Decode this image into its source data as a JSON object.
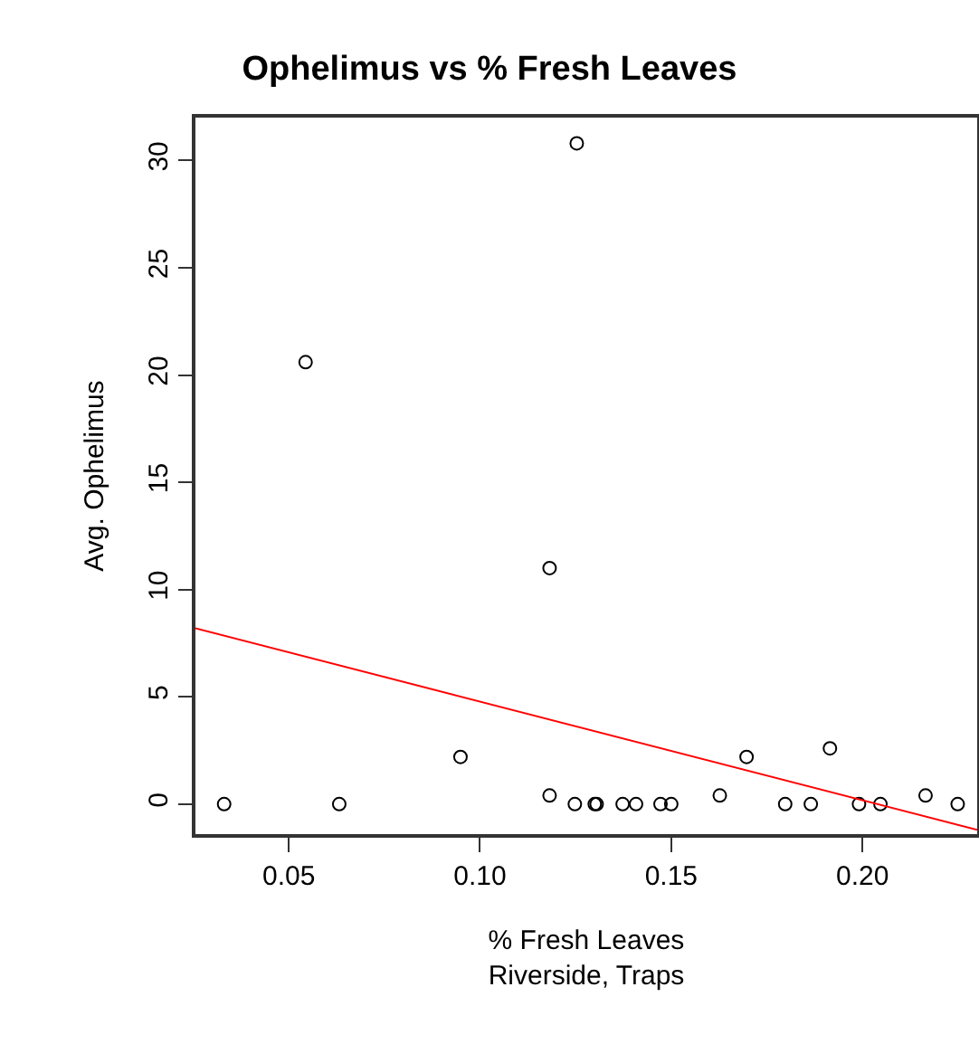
{
  "chart_data": {
    "type": "scatter",
    "title": "Ophelimus vs % Fresh Leaves",
    "xlabel": "% Fresh Leaves\nRiverside, Traps",
    "ylabel": "Avg. Ophelimus",
    "xlim": [
      0.0256,
      0.23
    ],
    "ylim": [
      -1.4,
      32
    ],
    "xticks": [
      {
        "value": 0.05,
        "label": "0.05"
      },
      {
        "value": 0.1,
        "label": "0.10"
      },
      {
        "value": 0.15,
        "label": "0.15"
      },
      {
        "value": 0.2,
        "label": "0.20"
      }
    ],
    "yticks": [
      0,
      5,
      10,
      15,
      20,
      25,
      30
    ],
    "grid": false,
    "marker": "circle",
    "series": [
      {
        "color": "#000000",
        "x": [
          0.0331,
          0.0544,
          0.0632,
          0.0949,
          0.1182,
          0.1182,
          0.1248,
          0.1253,
          0.13,
          0.1305,
          0.1373,
          0.1408,
          0.1472,
          0.15,
          0.1627,
          0.1697,
          0.1798,
          0.1865,
          0.1915,
          0.1991,
          0.2047,
          0.2165,
          0.2249
        ],
        "values": [
          0,
          20.6,
          0,
          2.2,
          11,
          0.4,
          0,
          30.8,
          0,
          0,
          0,
          0,
          0,
          0,
          0.4,
          2.2,
          0,
          0,
          2.6,
          0,
          0,
          0.4,
          0
        ]
      },
      {
        "type": "line",
        "color": "#ff0000",
        "marker": "none",
        "line_style": "solid",
        "x": [
          0.0256,
          0.23
        ],
        "values": [
          8.2,
          -1.2
        ]
      }
    ]
  }
}
